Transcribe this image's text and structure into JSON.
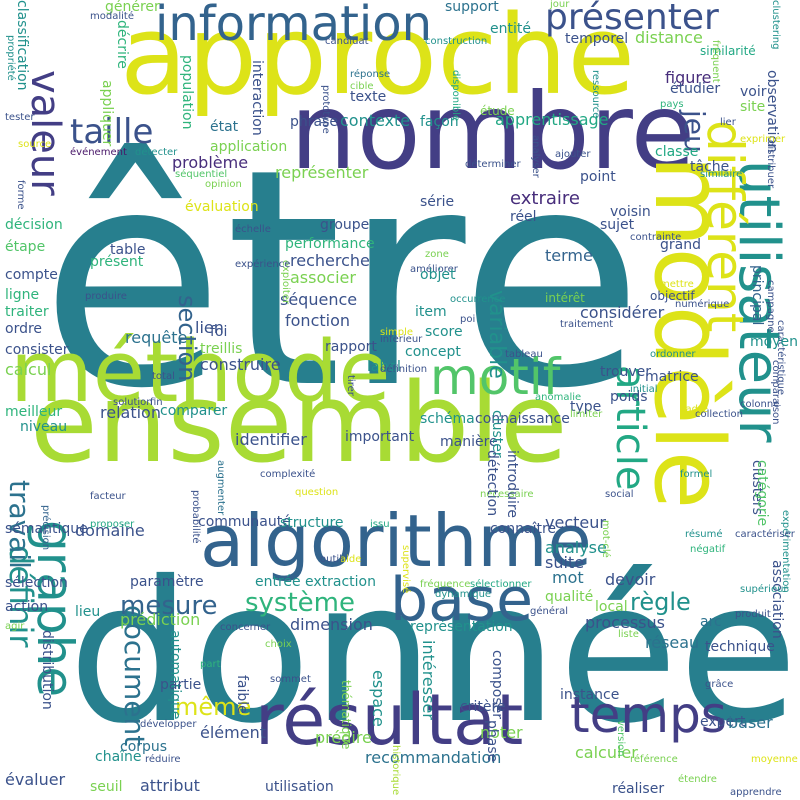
{
  "palette": {
    "background": "#ffffff",
    "yellow": "#dde318",
    "lime": "#a8db34",
    "green": "#7ad151",
    "mint": "#52c569",
    "teal_green": "#2fb47c",
    "sea": "#22a884",
    "teal": "#21918c",
    "petrol": "#277f8e",
    "blue": "#2c728e",
    "slate": "#33638d",
    "indigo": "#3b528b",
    "violet": "#433e85",
    "purple": "#472d7b",
    "dark_purple": "#481668"
  },
  "words": [
    "être",
    "donnée",
    "nombre",
    "approche",
    "ensemble",
    "méthode",
    "modèle",
    "algorithme",
    "résultat",
    "utilisateur",
    "information",
    "base",
    "temps",
    "motif",
    "valeur",
    "article",
    "graphe",
    "différent",
    "présenter",
    "taille",
    "système",
    "mesure",
    "définir",
    "variable",
    "document",
    "section",
    "travail",
    "jeu",
    "règle",
    "même",
    "contexte",
    "apprentissage",
    "problème",
    "représenter",
    "extraire",
    "recherche",
    "associer",
    "séquence",
    "fonction",
    "requête",
    "lien",
    "construire",
    "relation",
    "identifier",
    "prédiction",
    "dimension",
    "paramètre",
    "domaine",
    "communauté",
    "structure",
    "vecteur",
    "analyse",
    "mot",
    "suite",
    "devoir",
    "processus",
    "réseau",
    "instance",
    "expert",
    "calculer",
    "baser",
    "recommandation",
    "utilisation",
    "attribut",
    "évaluer",
    "seuil",
    "chaîne",
    "corpus",
    "élément",
    "prédire",
    "noter",
    "critère",
    "intéresser",
    "espace",
    "représentation",
    "qualité",
    "local",
    "arc",
    "technique",
    "association",
    "figure",
    "distance",
    "support",
    "entité",
    "générer",
    "modalité",
    "temporel",
    "similarité",
    "étudier",
    "voir",
    "site",
    "classe",
    "tâche",
    "observation",
    "principal",
    "clustering",
    "classification",
    "décrire",
    "appliquer",
    "population",
    "interaction",
    "application",
    "état",
    "phrase",
    "façon",
    "étude",
    "texte",
    "réponse",
    "cible",
    "prototype",
    "candidat",
    "construction",
    "disponible",
    "ressource",
    "jour",
    "fréquent",
    "pays",
    "lier",
    "exprimer",
    "distribuer",
    "caractéristique",
    "moyen",
    "campagne",
    "comparaison",
    "colonne",
    "collection",
    "cadre",
    "formel",
    "résumé",
    "négatif",
    "expérimentation",
    "supérieur",
    "produit",
    "étendre",
    "moyenne",
    "apprendre",
    "référence",
    "grâce",
    "réaliser",
    "version",
    "historique",
    "phase",
    "thématique",
    "composer",
    "sommet",
    "faible",
    "choix",
    "part",
    "développer",
    "réduire",
    "distribution",
    "automatique",
    "partie",
    "liste",
    "général",
    "fréquence",
    "sélectionner",
    "aide",
    "outil",
    "supervisé",
    "issu",
    "social",
    "nécessaire",
    "question",
    "complexité",
    "probabilité",
    "augmenter",
    "facteur",
    "précision",
    "niveau",
    "meilleur",
    "calcul",
    "consister",
    "ordre",
    "traiter",
    "ligne",
    "compte",
    "étape",
    "décision",
    "forme",
    "source",
    "tester",
    "événement",
    "détecter",
    "séquentiel",
    "opinion",
    "évaluation",
    "ajouter",
    "similaire",
    "déterminer",
    "analyser",
    "point",
    "série",
    "voisin",
    "sujet",
    "contrainte",
    "améliorer",
    "zone",
    "groupe",
    "performance",
    "réel",
    "terme",
    "objet",
    "grand",
    "objectif",
    "mettre",
    "considérer",
    "intérêt",
    "item",
    "score",
    "concept",
    "trouver",
    "matrice",
    "label",
    "type",
    "poids",
    "connaissance",
    "schéma",
    "important",
    "manière",
    "cluster",
    "détection",
    "introduire",
    "clusters",
    "catégorie",
    "connaître",
    "exploiter",
    "échelle",
    "expérience",
    "produire",
    "présent",
    "table",
    "occurrence",
    "numérique",
    "traitement",
    "inférieur",
    "définition",
    "tableau",
    "ordonner",
    "initial",
    "solution",
    "fin",
    "total",
    "tirer",
    "anomalie",
    "limiter",
    "comparer",
    "poi",
    "simple",
    "sémantique",
    "sélection",
    "action",
    "lieu",
    "agir",
    "concerner",
    "dynamique",
    "rapport",
    "treillis",
    "foi",
    "propriété",
    "entrée",
    "extraction",
    "proposer",
    "mot-clé",
    "caractériser"
  ]
}
